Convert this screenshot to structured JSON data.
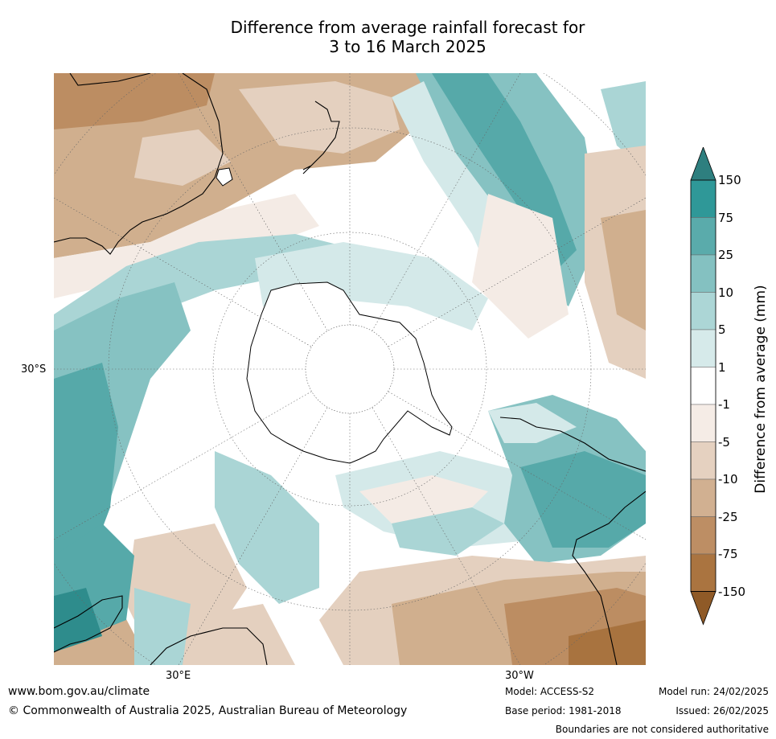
{
  "title_line1": "Difference from average rainfall forecast for",
  "title_line2": "3 to 16 March 2025",
  "map": {
    "latitude_label": "30°S",
    "longitude_labels": [
      "30°E",
      "30°W"
    ],
    "projection": "south polar stereographic",
    "colors": {
      "wet_strong": "#2e8c8c",
      "wet": "#56a9a9",
      "wet_mid": "#86c2c2",
      "wet_light": "#aad5d5",
      "wet_faint": "#d4e9e9",
      "neutral": "#ffffff",
      "dry_faint": "#f4ebe5",
      "dry_light": "#e4d0bf",
      "dry_mid": "#d0af8e",
      "dry": "#bc8d62",
      "dry_strong": "#a8733f"
    }
  },
  "colorbar": {
    "label": "Difference from average (mm)",
    "ticks": [
      "150",
      "75",
      "25",
      "10",
      "5",
      "1",
      "-1",
      "-5",
      "-10",
      "-25",
      "-75",
      "-150"
    ],
    "colors": [
      "#2e7f7f",
      "#2f9898",
      "#5aabab",
      "#84c1c1",
      "#acd6d6",
      "#d6eaea",
      "#ffffff",
      "#f5ece6",
      "#e5d1c0",
      "#d1b091",
      "#bd8e64",
      "#aa7440",
      "#8f5a27"
    ]
  },
  "footer": {
    "url": "www.bom.gov.au/climate",
    "copyright": "© Commonwealth of Australia 2025, Australian Bureau of Meteorology",
    "model": "Model: ACCESS-S2",
    "base_period": "Base period: 1981-2018",
    "model_run": "Model run: 24/02/2025",
    "issued": "Issued: 26/02/2025",
    "disclaimer": "Boundaries are not considered authoritative"
  }
}
